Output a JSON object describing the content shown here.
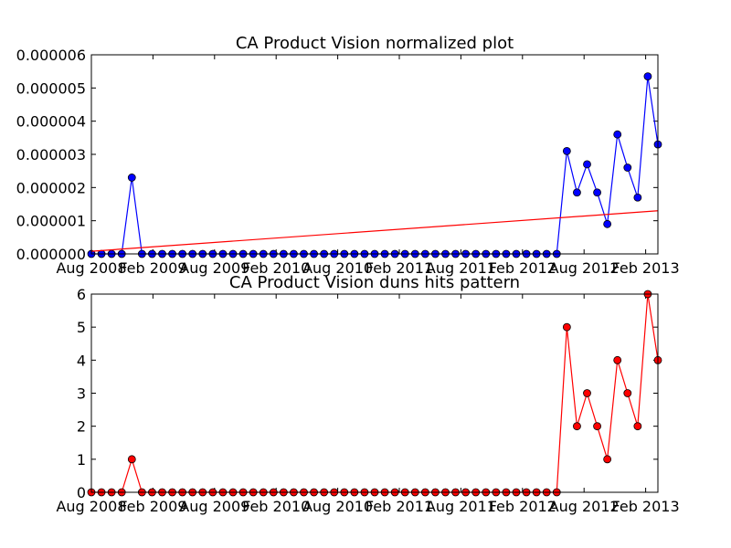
{
  "chart_data": [
    {
      "type": "line",
      "title": "CA Product Vision normalized plot",
      "xlabel": "",
      "ylabel": "",
      "x_start": "Aug 2008",
      "x_end": "Jun 2013",
      "x_tick_labels": [
        "Aug 2008",
        "Feb 2009",
        "Aug 2009",
        "Feb 2010",
        "Aug 2010",
        "Feb 2011",
        "Aug 2011",
        "Feb 2012",
        "Aug 2012",
        "Feb 2013"
      ],
      "y_tick_labels": [
        "0.000000",
        "0.000001",
        "0.000002",
        "0.000003",
        "0.000004",
        "0.000005",
        "0.000006"
      ],
      "ylim": [
        0,
        6e-06
      ],
      "grid": false,
      "series": [
        {
          "color": "#0000ff",
          "marker": "circle",
          "values": [
            0,
            0,
            0,
            0,
            2.3e-06,
            0,
            0,
            0,
            0,
            0,
            0,
            0,
            0,
            0,
            0,
            0,
            0,
            0,
            0,
            0,
            0,
            0,
            0,
            0,
            0,
            0,
            0,
            0,
            0,
            0,
            0,
            0,
            0,
            0,
            0,
            0,
            0,
            0,
            0,
            0,
            0,
            0,
            0,
            0,
            0,
            0,
            0,
            3.1e-06,
            1.85e-06,
            2.7e-06,
            1.85e-06,
            9e-07,
            3.6e-06,
            2.6e-06,
            1.7e-06,
            5.35e-06,
            3.3e-06
          ]
        },
        {
          "color": "#ff0000",
          "marker": "none",
          "values_trend_start": 8e-08,
          "values_trend_end": 1.3e-06
        }
      ]
    },
    {
      "type": "line",
      "title": "CA Product Vision duns hits pattern",
      "xlabel": "",
      "ylabel": "",
      "x_start": "Aug 2008",
      "x_end": "Jun 2013",
      "x_tick_labels": [
        "Aug 2008",
        "Feb 2009",
        "Aug 2009",
        "Feb 2010",
        "Aug 2010",
        "Feb 2011",
        "Aug 2011",
        "Feb 2012",
        "Aug 2012",
        "Feb 2013"
      ],
      "y_tick_labels": [
        "0",
        "1",
        "2",
        "3",
        "4",
        "5",
        "6"
      ],
      "ylim": [
        0,
        6
      ],
      "grid": false,
      "series": [
        {
          "color": "#ff0000",
          "marker": "circle",
          "values": [
            0,
            0,
            0,
            0,
            1,
            0,
            0,
            0,
            0,
            0,
            0,
            0,
            0,
            0,
            0,
            0,
            0,
            0,
            0,
            0,
            0,
            0,
            0,
            0,
            0,
            0,
            0,
            0,
            0,
            0,
            0,
            0,
            0,
            0,
            0,
            0,
            0,
            0,
            0,
            0,
            0,
            0,
            0,
            0,
            0,
            0,
            0,
            5,
            2,
            3,
            2,
            1,
            4,
            3,
            2,
            6,
            4
          ]
        }
      ]
    }
  ]
}
